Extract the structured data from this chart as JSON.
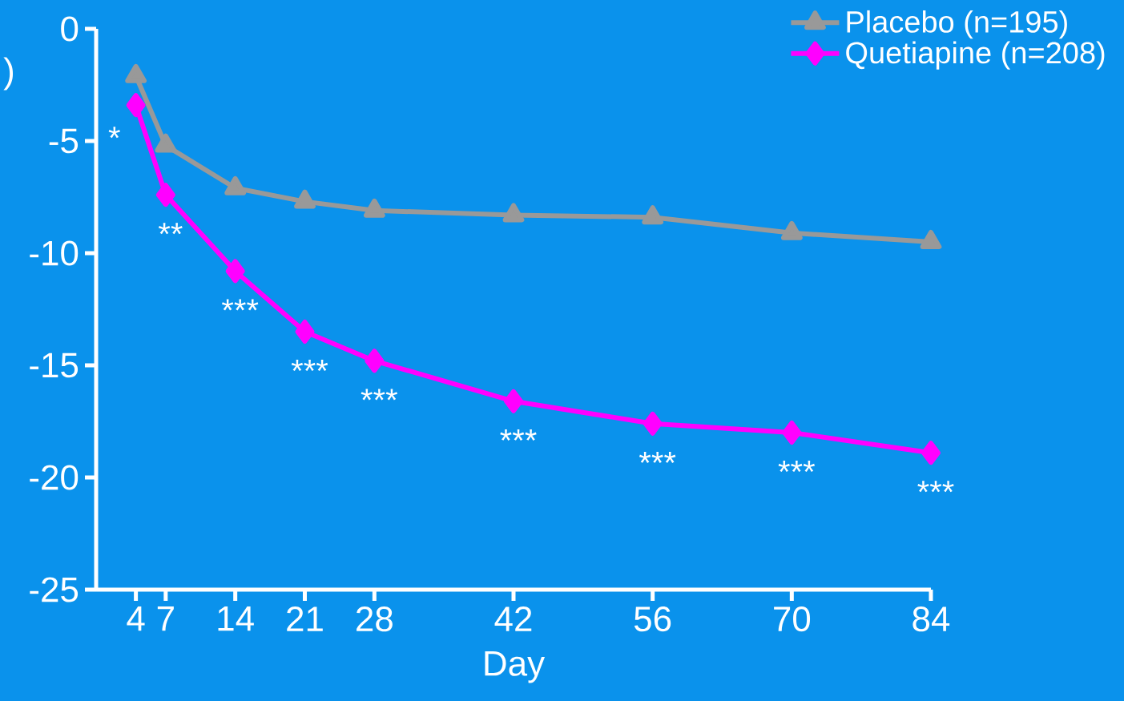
{
  "chart_data": {
    "type": "line",
    "xlabel": "Day",
    "ylabel": ")",
    "x": [
      4,
      7,
      14,
      21,
      28,
      42,
      56,
      70,
      84
    ],
    "xlim": [
      0,
      84
    ],
    "xticks": [
      4,
      7,
      14,
      21,
      28,
      42,
      56,
      70,
      84
    ],
    "ylim": [
      -25,
      0
    ],
    "yticks": [
      0,
      -5,
      -10,
      -15,
      -20,
      -25
    ],
    "legend": "top right",
    "series": [
      {
        "name": "Placebo (n=195)",
        "color": "#999999",
        "marker": "triangle",
        "values": [
          -2.1,
          -5.2,
          -7.1,
          -7.7,
          -8.1,
          -8.3,
          -8.4,
          -9.1,
          -9.5
        ]
      },
      {
        "name": "Quetiapine (n=208)",
        "color": "#ff00ff",
        "marker": "diamond",
        "values": [
          -3.4,
          -7.4,
          -10.8,
          -13.5,
          -14.8,
          -16.6,
          -17.6,
          -18.0,
          -18.9
        ]
      }
    ],
    "annotations": [
      "*",
      "**",
      "***",
      "***",
      "***",
      "***",
      "***",
      "***",
      "***"
    ]
  }
}
